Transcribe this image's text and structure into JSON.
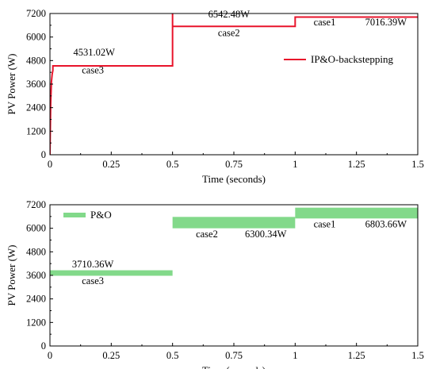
{
  "chart_data": [
    {
      "type": "line",
      "xlabel": "Time (seconds)",
      "ylabel": "PV Power (W)",
      "xlim": [
        0,
        1.5
      ],
      "ylim": [
        0,
        7200
      ],
      "xticks": [
        "0",
        "0.25",
        "0.5",
        "0.75",
        "1",
        "1.25",
        "1.5"
      ],
      "yticks": [
        "0",
        "1200",
        "2400",
        "3600",
        "4800",
        "6000",
        "7200"
      ],
      "grid": false,
      "legend_position": "top-right",
      "series": [
        {
          "name": "IP&O-backstepping",
          "color": "#e8142b",
          "style": "line",
          "points": [
            [
              0,
              0
            ],
            [
              0.003,
              2600
            ],
            [
              0.006,
              3700
            ],
            [
              0.009,
              4100
            ],
            [
              0.012,
              4300
            ],
            [
              0.012,
              4531.02
            ],
            [
              0.5,
              4531.02
            ],
            [
              0.5,
              7200
            ],
            [
              0.5,
              6542.48
            ],
            [
              1.0,
              6542.48
            ],
            [
              1.0,
              7016.39
            ],
            [
              1.5,
              7016.39
            ]
          ]
        }
      ],
      "annotations": [
        {
          "text": "4531.02W",
          "x": 0.18,
          "y": 5050
        },
        {
          "text": "case3",
          "x": 0.175,
          "y": 4150
        },
        {
          "text": "6542.48W",
          "x": 0.73,
          "y": 7000
        },
        {
          "text": "case2",
          "x": 0.73,
          "y": 6050
        },
        {
          "text": "case1",
          "x": 1.12,
          "y": 6600
        },
        {
          "text": "7016.39W",
          "x": 1.37,
          "y": 6600
        }
      ]
    },
    {
      "type": "area",
      "xlabel": "Time (seconds)",
      "ylabel": "PV Power (W)",
      "xlim": [
        0,
        1.5
      ],
      "ylim": [
        0,
        7200
      ],
      "xticks": [
        "0",
        "0.25",
        "0.5",
        "0.75",
        "1",
        "1.25",
        "1.5"
      ],
      "yticks": [
        "0",
        "1200",
        "2400",
        "3600",
        "4800",
        "6000",
        "7200"
      ],
      "grid": false,
      "legend_position": "top-left",
      "series": [
        {
          "name": "P&O",
          "color": "#82d98a",
          "style": "band",
          "bands": [
            {
              "x0": 0,
              "x1": 0.5,
              "low": 3580,
              "high": 3860
            },
            {
              "x0": 0.5,
              "x1": 1.0,
              "low": 6000,
              "high": 6580
            },
            {
              "x0": 1.0,
              "x1": 1.5,
              "low": 6500,
              "high": 7050
            }
          ]
        }
      ],
      "annotations": [
        {
          "text": "3710.36W",
          "x": 0.175,
          "y": 4000
        },
        {
          "text": "case3",
          "x": 0.175,
          "y": 3150
        },
        {
          "text": "case2",
          "x": 0.64,
          "y": 5550
        },
        {
          "text": "6300.34W",
          "x": 0.88,
          "y": 5550
        },
        {
          "text": "case1",
          "x": 1.12,
          "y": 6050
        },
        {
          "text": "6803.66W",
          "x": 1.37,
          "y": 6050
        }
      ]
    }
  ]
}
